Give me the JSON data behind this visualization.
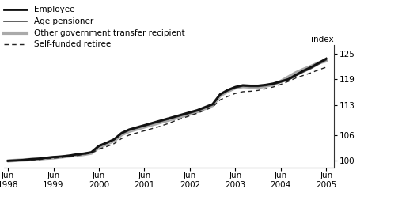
{
  "ylabel_right": "index",
  "yticks": [
    100,
    106,
    113,
    119,
    125
  ],
  "ylim": [
    98.5,
    127
  ],
  "background_color": "#ffffff",
  "legend_entries": [
    "Employee",
    "Age pensioner",
    "Other government transfer recipient",
    "Self-funded retiree"
  ],
  "x_years": [
    1998.417,
    1998.583,
    1998.75,
    1998.917,
    1999.083,
    1999.25,
    1999.417,
    1999.583,
    1999.75,
    1999.917,
    2000.083,
    2000.25,
    2000.417,
    2000.583,
    2000.75,
    2000.917,
    2001.083,
    2001.25,
    2001.417,
    2001.583,
    2001.75,
    2001.917,
    2002.083,
    2002.25,
    2002.417,
    2002.583,
    2002.75,
    2002.917,
    2003.083,
    2003.25,
    2003.417,
    2003.583,
    2003.75,
    2003.917,
    2004.083,
    2004.25,
    2004.417,
    2004.583,
    2004.75,
    2004.917,
    2005.083,
    2005.25,
    2005.417
  ],
  "employee": [
    100.0,
    100.1,
    100.2,
    100.4,
    100.5,
    100.7,
    100.9,
    101.0,
    101.2,
    101.5,
    101.7,
    102.0,
    103.5,
    104.2,
    105.0,
    106.5,
    107.3,
    107.8,
    108.3,
    108.8,
    109.3,
    109.8,
    110.3,
    110.8,
    111.3,
    111.8,
    112.5,
    113.2,
    115.5,
    116.5,
    117.2,
    117.6,
    117.5,
    117.5,
    117.7,
    118.0,
    118.5,
    119.0,
    120.0,
    121.0,
    121.8,
    122.8,
    123.8
  ],
  "age_pensioner": [
    100.0,
    100.1,
    100.2,
    100.3,
    100.5,
    100.6,
    100.8,
    101.0,
    101.2,
    101.4,
    101.6,
    101.9,
    103.3,
    104.1,
    104.9,
    106.3,
    107.1,
    107.6,
    108.1,
    108.6,
    109.1,
    109.6,
    110.1,
    110.6,
    111.1,
    111.6,
    112.3,
    113.0,
    115.3,
    116.3,
    117.0,
    117.4,
    117.3,
    117.3,
    117.5,
    117.8,
    118.3,
    118.8,
    119.8,
    120.7,
    121.5,
    122.5,
    123.5
  ],
  "other_govt": [
    100.0,
    100.1,
    100.2,
    100.3,
    100.4,
    100.6,
    100.7,
    100.9,
    101.1,
    101.3,
    101.5,
    101.8,
    103.1,
    103.9,
    104.7,
    106.1,
    106.9,
    107.4,
    107.9,
    108.4,
    108.9,
    109.4,
    109.9,
    110.4,
    110.9,
    111.5,
    112.2,
    112.9,
    115.2,
    116.2,
    117.0,
    117.3,
    117.2,
    117.1,
    117.4,
    117.8,
    118.5,
    119.5,
    120.5,
    121.3,
    122.0,
    122.8,
    123.3
  ],
  "self_funded": [
    100.0,
    100.1,
    100.1,
    100.2,
    100.3,
    100.5,
    100.6,
    100.8,
    101.0,
    101.2,
    101.5,
    101.8,
    102.7,
    103.3,
    104.0,
    105.2,
    106.0,
    106.5,
    107.0,
    107.5,
    108.0,
    108.6,
    109.3,
    109.9,
    110.5,
    111.1,
    111.8,
    112.5,
    114.2,
    115.0,
    115.7,
    116.1,
    116.2,
    116.4,
    116.8,
    117.2,
    117.8,
    118.5,
    119.3,
    119.9,
    120.5,
    121.2,
    121.8
  ],
  "employee_color": "#111111",
  "age_pensioner_color": "#444444",
  "other_govt_color": "#aaaaaa",
  "self_funded_color": "#222222",
  "employee_lw": 2.0,
  "age_pensioner_lw": 1.2,
  "other_govt_lw": 3.0,
  "self_funded_lw": 1.0,
  "xlim": [
    1998.33,
    2005.58
  ]
}
